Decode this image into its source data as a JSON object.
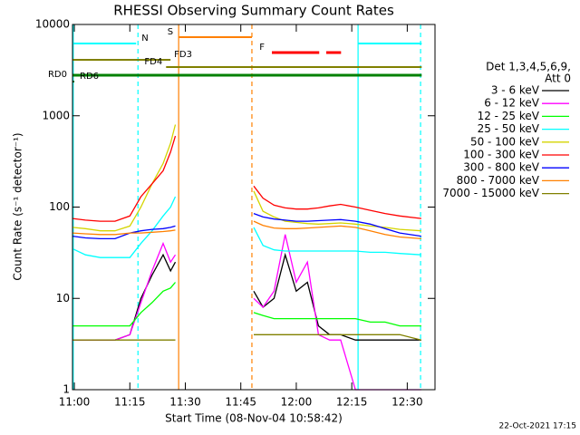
{
  "chart_data": {
    "type": "line",
    "title": "RHESSI Observing Summary Count Rates",
    "xlabel": "Start Time (08-Nov-04 10:58:42)",
    "ylabel": "Count Rate (s⁻¹ detector⁻¹)",
    "legend_title": [
      "Det 1,3,4,5,6,9,",
      "Att 0"
    ],
    "footer": "22-Oct-2021 17:15",
    "ylog": true,
    "legend": "right",
    "xlim": [
      -0.5,
      97.5
    ],
    "xticks": [
      {
        "value": 0,
        "label": "11:00"
      },
      {
        "value": 15,
        "label": "11:15"
      },
      {
        "value": 30,
        "label": "11:30"
      },
      {
        "value": 45,
        "label": "11:45"
      },
      {
        "value": 60,
        "label": "12:00"
      },
      {
        "value": 75,
        "label": "12:15"
      },
      {
        "value": 90,
        "label": "12:30"
      }
    ],
    "ylim": [
      1,
      10000
    ],
    "yticks": [
      1,
      10,
      100,
      1000,
      10000
    ],
    "x": [
      -0.5,
      3,
      7,
      11,
      15,
      18,
      21,
      24,
      26,
      27.3,
      38,
      48.5,
      51,
      54,
      57,
      60,
      63,
      66,
      69,
      72,
      76,
      80,
      84,
      88,
      93.8
    ],
    "series": [
      {
        "name": "3 - 6 keV",
        "color": "#000000",
        "values": [
          3.5,
          3.5,
          3.5,
          3.5,
          4,
          10,
          18,
          30,
          20,
          25,
          null,
          12,
          8,
          10,
          30,
          12,
          15,
          5,
          4,
          4,
          3.5,
          3.5,
          3.5,
          3.5,
          3.5
        ]
      },
      {
        "name": "6 - 12 keV",
        "color": "#ff00ff",
        "values": [
          3.5,
          3.5,
          3.5,
          3.5,
          4,
          9,
          20,
          40,
          25,
          30,
          null,
          10,
          8,
          12,
          50,
          15,
          25,
          4,
          3.5,
          3.5,
          1,
          1,
          1,
          1,
          1
        ]
      },
      {
        "name": "12 - 25 keV",
        "color": "#00ff00",
        "values": [
          5,
          5,
          5,
          5,
          5,
          7,
          9,
          12,
          13,
          15,
          null,
          7,
          6.5,
          6,
          6,
          6,
          6,
          6,
          6,
          6,
          6,
          5.5,
          5.5,
          5,
          5
        ]
      },
      {
        "name": "25 - 50 keV",
        "color": "#00ffff",
        "values": [
          35,
          30,
          28,
          28,
          28,
          40,
          55,
          80,
          100,
          130,
          null,
          60,
          38,
          34,
          33,
          33,
          33,
          33,
          33,
          33,
          33,
          32,
          32,
          31,
          30
        ]
      },
      {
        "name": "50 - 100 keV",
        "color": "#d4d400",
        "values": [
          60,
          58,
          55,
          55,
          62,
          100,
          180,
          300,
          500,
          800,
          null,
          150,
          90,
          78,
          70,
          68,
          66,
          65,
          66,
          67,
          65,
          62,
          60,
          57,
          55
        ]
      },
      {
        "name": "100 - 300 keV",
        "color": "#ff0000",
        "values": [
          75,
          72,
          70,
          70,
          80,
          130,
          180,
          250,
          400,
          600,
          null,
          170,
          125,
          105,
          98,
          95,
          95,
          98,
          103,
          107,
          100,
          92,
          85,
          80,
          75
        ]
      },
      {
        "name": "300 - 800 keV",
        "color": "#0000ff",
        "values": [
          48,
          46,
          45,
          45,
          52,
          55,
          57,
          58,
          60,
          62,
          null,
          85,
          78,
          74,
          72,
          70,
          70,
          71,
          72,
          73,
          70,
          65,
          58,
          52,
          48
        ]
      },
      {
        "name": "800 - 7000 keV",
        "color": "#ff8000",
        "values": [
          52,
          51,
          50,
          50,
          52,
          52,
          53,
          54,
          55,
          56,
          null,
          70,
          63,
          59,
          58,
          58,
          59,
          60,
          61,
          62,
          60,
          55,
          50,
          47,
          45
        ]
      },
      {
        "name": "7000 - 15000 keV",
        "color": "#808000",
        "values": [
          3.5,
          3.5,
          3.5,
          3.5,
          3.5,
          3.5,
          3.5,
          3.5,
          3.5,
          3.5,
          null,
          4,
          4,
          4,
          4,
          4,
          4,
          4,
          4,
          4,
          4,
          4,
          4,
          4,
          3.5
        ]
      }
    ],
    "flags": [
      {
        "label": "N",
        "color": "#00ffff",
        "segments": [
          [
            -0.5,
            16.7
          ],
          [
            76.7,
            93.9
          ]
        ]
      },
      {
        "label": "S",
        "color": "#ff8000",
        "segments": [
          [
            28.2,
            48
          ]
        ]
      },
      {
        "label": "F",
        "color": "#ff0000",
        "segments": [
          [
            53.4,
            66.2
          ],
          [
            68.1,
            72.1
          ]
        ]
      },
      {
        "label": "FD3",
        "color": "#808000",
        "segments": [
          [
            -0.5,
            26
          ]
        ]
      },
      {
        "label": "FD4",
        "color": "#808000",
        "segments": [
          [
            24.8,
            93.9
          ]
        ]
      },
      {
        "label": "RD0",
        "color": "#008000",
        "segments": [
          [
            -0.5,
            93.9
          ]
        ]
      },
      {
        "label": "RD6",
        "color": "#006400",
        "segments": [
          [
            -0.5,
            0
          ]
        ]
      }
    ],
    "vlines": [
      {
        "x": -0.3,
        "color": "#00ffff",
        "style": "solid"
      },
      {
        "x": 17.2,
        "color": "#00ffff",
        "style": "dashed"
      },
      {
        "x": 28.2,
        "color": "#ff8000",
        "style": "solid"
      },
      {
        "x": 48,
        "color": "#ff8000",
        "style": "dashed"
      },
      {
        "x": 76.7,
        "color": "#00ffff",
        "style": "solid"
      },
      {
        "x": 93.6,
        "color": "#00ffff",
        "style": "dashed"
      }
    ]
  }
}
